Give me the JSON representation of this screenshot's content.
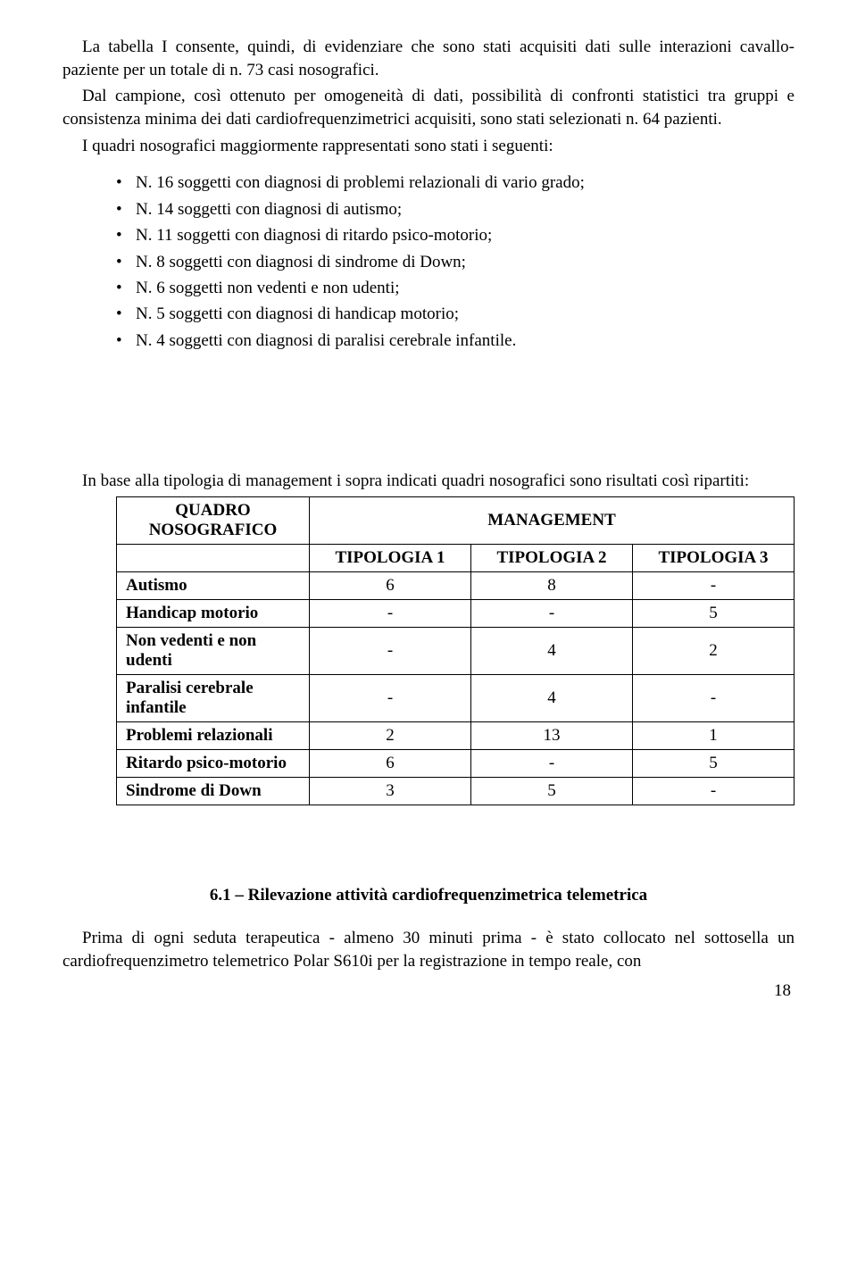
{
  "p1": "La tabella I consente, quindi, di evidenziare che sono stati acquisiti dati sulle interazioni cavallo-paziente per un totale di n. 73 casi nosografici.",
  "p2": "Dal campione, così ottenuto per omogeneità di dati, possibilità di confronti statistici tra gruppi e consistenza minima dei dati cardiofrequenzimetrici acquisiti, sono stati selezionati n. 64 pazienti.",
  "p3": "I quadri nosografici maggiormente rappresentati sono stati i seguenti:",
  "list": {
    "i1": "N. 16 soggetti con diagnosi di problemi relazionali di vario grado;",
    "i2": "N. 14 soggetti con diagnosi di autismo;",
    "i3": "N. 11 soggetti con diagnosi di ritardo psico-motorio;",
    "i4": "N. 8 soggetti con diagnosi di sindrome di Down;",
    "i5": "N. 6 soggetti non vedenti e non udenti;",
    "i6": "N. 5 soggetti con diagnosi di handicap motorio;",
    "i7": "N. 4 soggetti con diagnosi di paralisi cerebrale infantile."
  },
  "p4": "In base alla tipologia di management i sopra indicati quadri nosografici sono risultati così ripartiti:",
  "table": {
    "header_left": "QUADRO NOSOGRAFICO",
    "header_right": "MANAGEMENT",
    "cols": {
      "c1": "TIPOLOGIA 1",
      "c2": "TIPOLOGIA 2",
      "c3": "TIPOLOGIA 3"
    },
    "rows": {
      "r1": {
        "label": "Autismo",
        "v1": "6",
        "v2": "8",
        "v3": "-"
      },
      "r2": {
        "label": "Handicap motorio",
        "v1": "-",
        "v2": "-",
        "v3": "5"
      },
      "r3": {
        "label": "Non vedenti e non udenti",
        "v1": "-",
        "v2": "4",
        "v3": "2"
      },
      "r4": {
        "label": "Paralisi cerebrale infantile",
        "v1": "-",
        "v2": "4",
        "v3": "-"
      },
      "r5": {
        "label": "Problemi relazionali",
        "v1": "2",
        "v2": "13",
        "v3": "1"
      },
      "r6": {
        "label": "Ritardo psico-motorio",
        "v1": "6",
        "v2": "-",
        "v3": "5"
      },
      "r7": {
        "label": "Sindrome di Down",
        "v1": "3",
        "v2": "5",
        "v3": "-"
      }
    }
  },
  "section_heading": "6.1 – Rilevazione attività cardiofrequenzimetrica telemetrica",
  "p5": "Prima di ogni seduta terapeutica - almeno 30 minuti prima - è stato collocato nel sottosella un cardiofrequenzimetro telemetrico Polar S610i per la registrazione in tempo reale, con",
  "page_number": "18"
}
